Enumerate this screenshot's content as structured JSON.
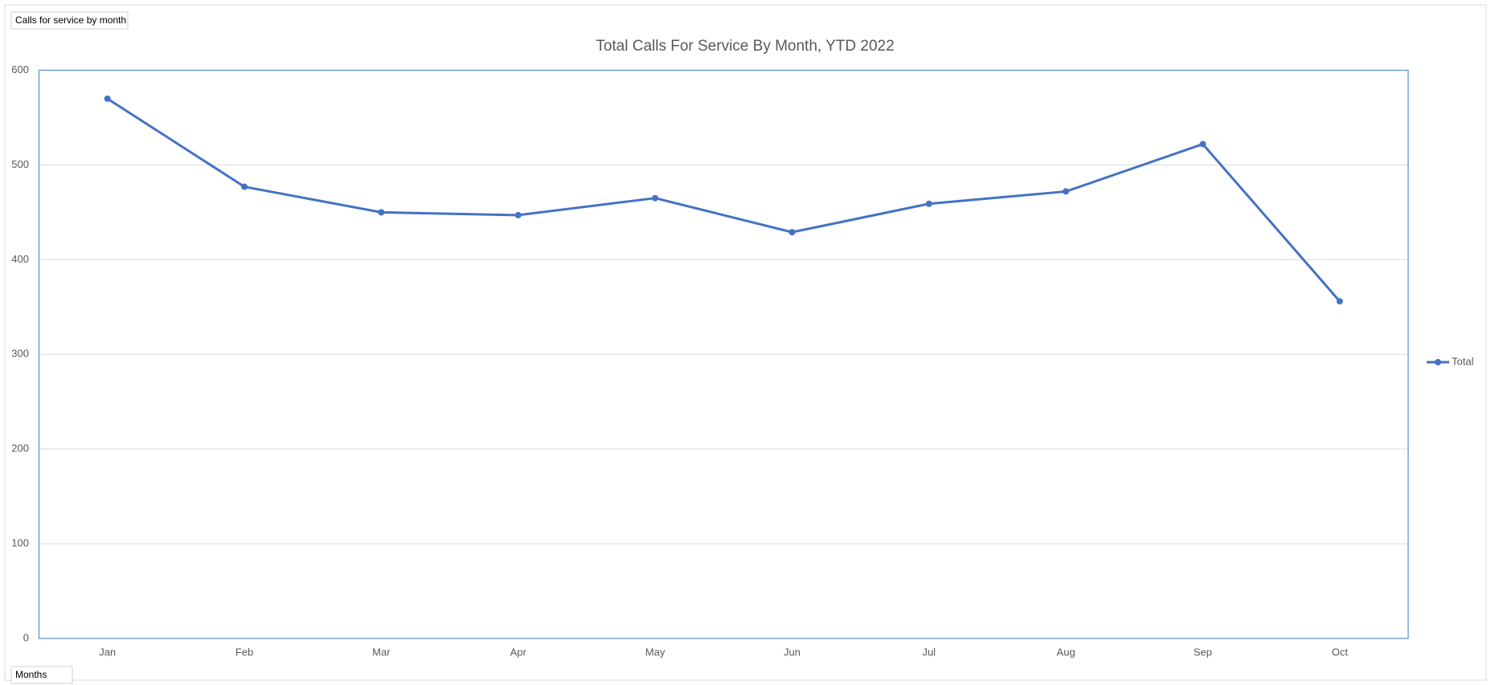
{
  "field_buttons": {
    "filter": "Calls for service by month",
    "axis": "Months"
  },
  "chart_data": {
    "type": "line",
    "title": "Total Calls For Service By Month, YTD 2022",
    "categories": [
      "Jan",
      "Feb",
      "Mar",
      "Apr",
      "May",
      "Jun",
      "Jul",
      "Aug",
      "Sep",
      "Oct"
    ],
    "series": [
      {
        "name": "Total",
        "color": "#4472c4",
        "values": [
          570,
          477,
          450,
          447,
          465,
          429,
          459,
          472,
          522,
          356
        ]
      }
    ],
    "ylim": [
      0,
      600
    ],
    "yticks": [
      0,
      100,
      200,
      300,
      400,
      500,
      600
    ],
    "grid": true,
    "legend": "right"
  }
}
